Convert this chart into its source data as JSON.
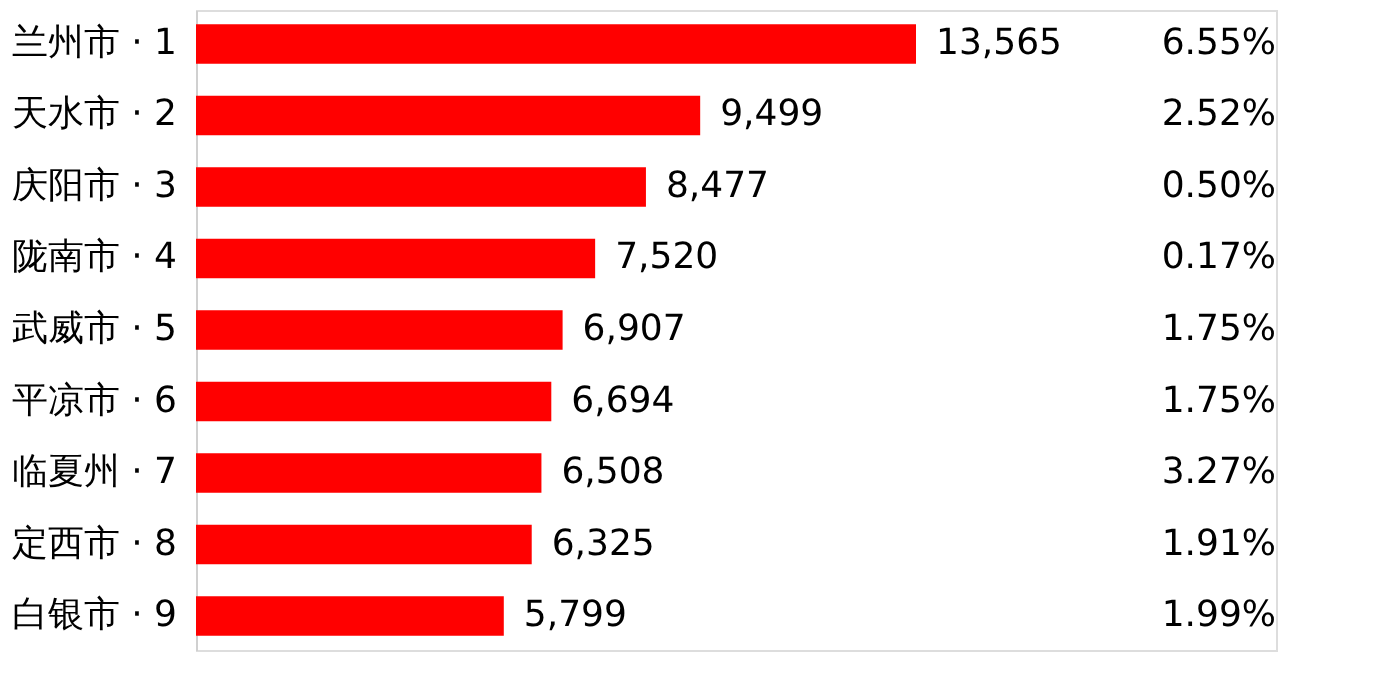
{
  "chart_data": {
    "type": "bar",
    "orientation": "horizontal",
    "categories": [
      "兰州市 · 1",
      "天水市 · 2",
      "庆阳市 · 3",
      "陇南市 · 4",
      "武威市 · 5",
      "平凉市 · 6",
      "临夏州 · 7",
      "定西市 · 8",
      "白银市 · 9"
    ],
    "values": [
      13565,
      9499,
      8477,
      7520,
      6907,
      6694,
      6508,
      6325,
      5799
    ],
    "value_labels": [
      "13,565",
      "9,499",
      "8,477",
      "7,520",
      "6,907",
      "6,694",
      "6,508",
      "6,325",
      "5,799"
    ],
    "color": "#ff0000",
    "tick_labels": "y",
    "annotations": [
      "6.55%",
      "2.52%",
      "0.50%",
      "0.17%",
      "1.75%",
      "1.75%",
      "3.27%",
      "1.91%",
      "1.99%"
    ]
  }
}
